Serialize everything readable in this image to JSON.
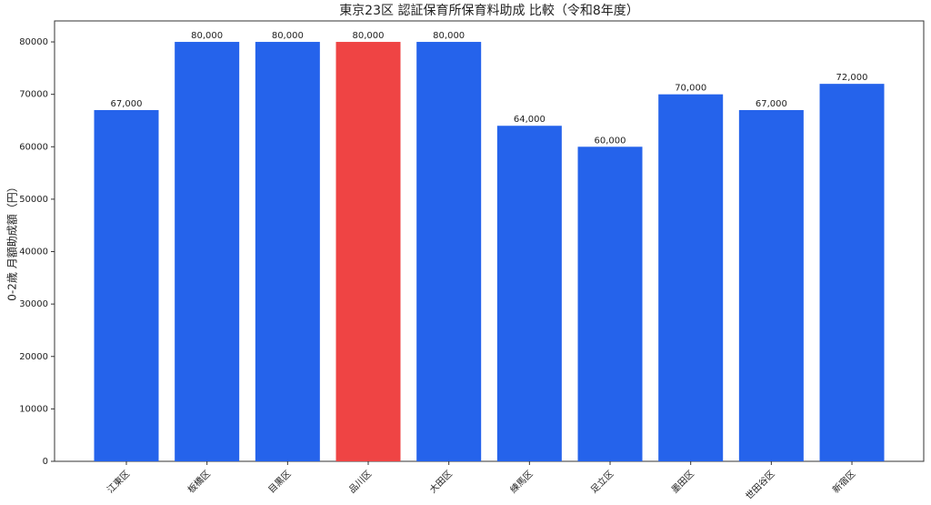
{
  "chart_data": {
    "type": "bar",
    "title": "東京23区 認証保育所保育料助成 比較（令和8年度）",
    "y_label": "0-2歳 月額助成額（円）",
    "categories": [
      "江東区",
      "板橋区",
      "目黒区",
      "品川区",
      "大田区",
      "練馬区",
      "足立区",
      "墨田区",
      "世田谷区",
      "新宿区"
    ],
    "values": [
      67000,
      80000,
      80000,
      80000,
      80000,
      64000,
      60000,
      70000,
      67000,
      72000
    ],
    "value_labels": [
      "67,000",
      "80,000",
      "80,000",
      "80,000",
      "80,000",
      "64,000",
      "60,000",
      "70,000",
      "67,000",
      "72,000"
    ],
    "colors": [
      "#2563eb",
      "#2563eb",
      "#2563eb",
      "#ef4444",
      "#2563eb",
      "#2563eb",
      "#2563eb",
      "#2563eb",
      "#2563eb",
      "#2563eb"
    ],
    "ylim": [
      0,
      84000
    ],
    "yticks": [
      0,
      10000,
      20000,
      30000,
      40000,
      50000,
      60000,
      70000,
      80000
    ]
  }
}
